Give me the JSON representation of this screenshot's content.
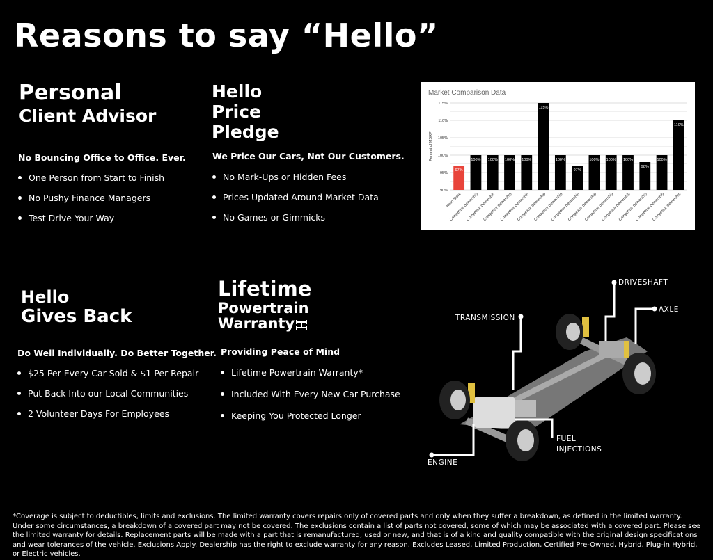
{
  "title": "Reasons to say “Hello”",
  "sections": [
    {
      "title_lines": [
        "Personal",
        "Client Advisor"
      ],
      "subtitle": "No Bouncing Office to Office. Ever.",
      "bullets": [
        "One Person from Start to Finish",
        "No Pushy Finance Managers",
        "Test Drive Your Way"
      ]
    },
    {
      "title_lines": [
        "Hello",
        "Price",
        "Pledge"
      ],
      "subtitle": "We Price Our Cars, Not Our Customers.",
      "bullets": [
        "No Mark-Ups or Hidden Fees",
        "Prices Updated Around Market Data",
        "No Games or Gimmicks"
      ]
    },
    {
      "title_lines": [
        "Hello",
        "Gives Back"
      ],
      "subtitle": "Do Well Individually. Do Better Together.",
      "bullets": [
        "$25 Per Every Car Sold & $1 Per Repair",
        "Put Back Into our Local Communities",
        "2 Volunteer Days For Employees"
      ]
    },
    {
      "title_lines": [
        "Lifetime",
        "Powertrain",
        "Warranty"
      ],
      "subtitle": "Providing Peace of Mind",
      "bullets": [
        "Lifetime Powertrain Warranty*",
        "Included With Every New Car Purchase",
        "Keeping You Protected Longer"
      ]
    }
  ],
  "diagram_labels": {
    "driveshaft": "DRIVESHAFT",
    "axle": "AXLE",
    "transmission": "TRANSMISSION",
    "fuel": "FUEL",
    "injections": "INJECTIONS",
    "engine": "ENGINE"
  },
  "footnote": "*Coverage is subject to deductibles, limits and exclusions. The limited warranty covers repairs only of covered parts and only when they suffer a breakdown, as defined in the limited warranty. Under some circumstances, a breakdown of a covered part may not be covered. The exclusions contain a list of parts not covered, some of which may be associated with a covered part. Please see the limited warranty for details. Replacement parts will be made with a part that is remanufactured, used or new, and that is of a kind and quality compatible with the original design specifications and wear tolerances of the vehicle. Exclusions Apply. Dealership has the right to exclude warranty for any reason. Excludes Leased, Limited Production, Certified Pre-Owned, Hybrid, Plug-in Hybrid, or Electric vehicles.",
  "chart_data": {
    "type": "bar",
    "title": "Market Comparison Data",
    "ylabel": "Percent of MSRP",
    "xlabel": "",
    "categories": [
      "Hello Store",
      "Competitor Dealership",
      "Competitor Dealership",
      "Competitor Dealership",
      "Competitor Dealership",
      "Competitor Dealership",
      "Competitor Dealership",
      "Competitor Dealership",
      "Competitor Dealership",
      "Competitor Dealership",
      "Competitor Dealership",
      "Competitor Dealership",
      "Competitor Dealership",
      "Competitor Dealership"
    ],
    "values": [
      97,
      100,
      100,
      100,
      100,
      115,
      100,
      97,
      100,
      100,
      100,
      98,
      100,
      110
    ],
    "data_labels": [
      "97%",
      "100%",
      "100%",
      "100%",
      "100%",
      "115%",
      "100%",
      "97%",
      "100%",
      "100%",
      "100%",
      "98%",
      "100%",
      "110%"
    ],
    "ylim": [
      90,
      115
    ],
    "yticks": [
      "90%",
      "95%",
      "100%",
      "105%",
      "110%",
      "115%"
    ],
    "grid": true,
    "colors": {
      "highlight": "#e8443a",
      "default": "#000000"
    }
  }
}
